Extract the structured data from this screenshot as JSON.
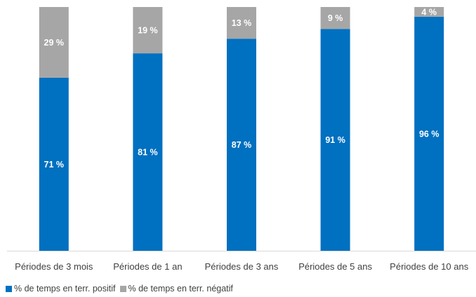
{
  "colors": {
    "positive": "#0070c0",
    "negative": "#a6a6a6",
    "axis": "#d9d9d9"
  },
  "legend": {
    "positive": "% de temps en terr. positif",
    "negative": "% de temps en terr. négatif"
  },
  "chart_data": {
    "type": "bar",
    "stacked": true,
    "categories": [
      "Périodes de 3 mois",
      "Périodes de 1 an",
      "Périodes de 3 ans",
      "Périodes de 5 ans",
      "Périodes de 10 ans"
    ],
    "series": [
      {
        "name": "% de temps en terr. positif",
        "values": [
          71,
          81,
          87,
          91,
          96
        ],
        "labels": [
          "71 %",
          "81 %",
          "87 %",
          "91 %",
          "96 %"
        ]
      },
      {
        "name": "% de temps en terr. négatif",
        "values": [
          29,
          19,
          13,
          9,
          4
        ],
        "labels": [
          "29 %",
          "19 %",
          "13 %",
          "9 %",
          "4 %"
        ]
      }
    ],
    "ylim": [
      0,
      100
    ],
    "grid": false,
    "legend_position": "bottom-left"
  }
}
